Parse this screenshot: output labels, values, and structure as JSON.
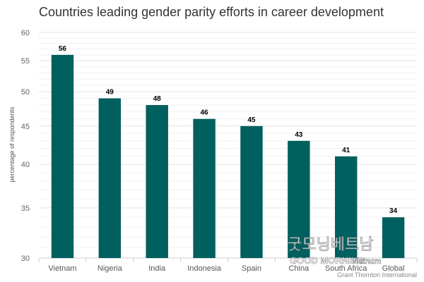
{
  "chart_data": {
    "type": "bar",
    "title": "Countries leading gender parity efforts in career development",
    "ylabel": "percentage of respondents",
    "xlabel": "",
    "categories": [
      "Vietnam",
      "Nigeria",
      "India",
      "Indonesia",
      "Spain",
      "China",
      "South Africa",
      "Global"
    ],
    "values": [
      56,
      49,
      48,
      46,
      45,
      43,
      41,
      34
    ],
    "ylim": [
      30,
      60
    ],
    "y_ticks": [
      30,
      35,
      40,
      45,
      50,
      55,
      60
    ],
    "y_scale": "log",
    "bar_color": "#00605f",
    "grid": true,
    "legend": "none"
  },
  "source": "Grant Thornton International",
  "watermark": {
    "korean_text": "굿모닝베트남",
    "english_text": "GOOD MORNING",
    "script_text": "Vietnam"
  }
}
